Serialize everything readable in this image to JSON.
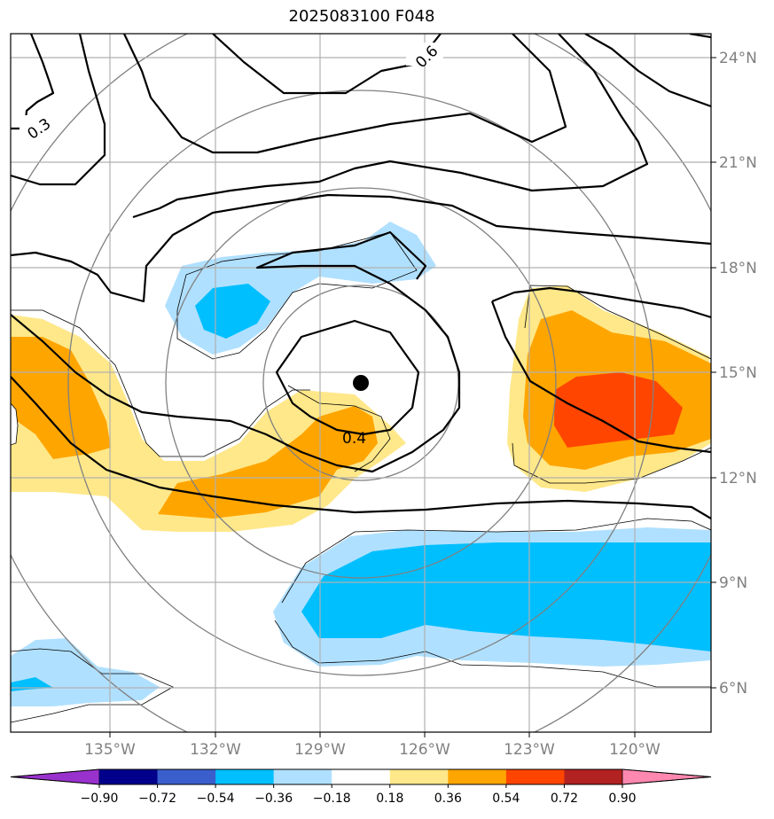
{
  "title": "2025083100 F048",
  "axes": {
    "longitude_ticks": [
      "135°W",
      "132°W",
      "129°W",
      "126°W",
      "123°W",
      "120°W"
    ],
    "latitude_ticks": [
      "24°N",
      "21°N",
      "18°N",
      "15°N",
      "12°N",
      "9°N",
      "6°N"
    ]
  },
  "contour_labels": [
    "0.3",
    "0.6",
    "0.4"
  ],
  "colorbar": {
    "ticks": [
      "−0.90",
      "−0.72",
      "−0.54",
      "−0.36",
      "−0.18",
      "0.18",
      "0.36",
      "0.54",
      "0.72",
      "0.90"
    ],
    "colors": [
      "#9932cc",
      "#00008b",
      "#3a5fcd",
      "#00bfff",
      "#b0e0ff",
      "#ffffff",
      "#ffe88a",
      "#ffa500",
      "#ff4500",
      "#b22222",
      "#ff88b0"
    ]
  },
  "center_marker": {
    "lon": -127.7,
    "lat": 14.7,
    "color": "#000000"
  }
}
